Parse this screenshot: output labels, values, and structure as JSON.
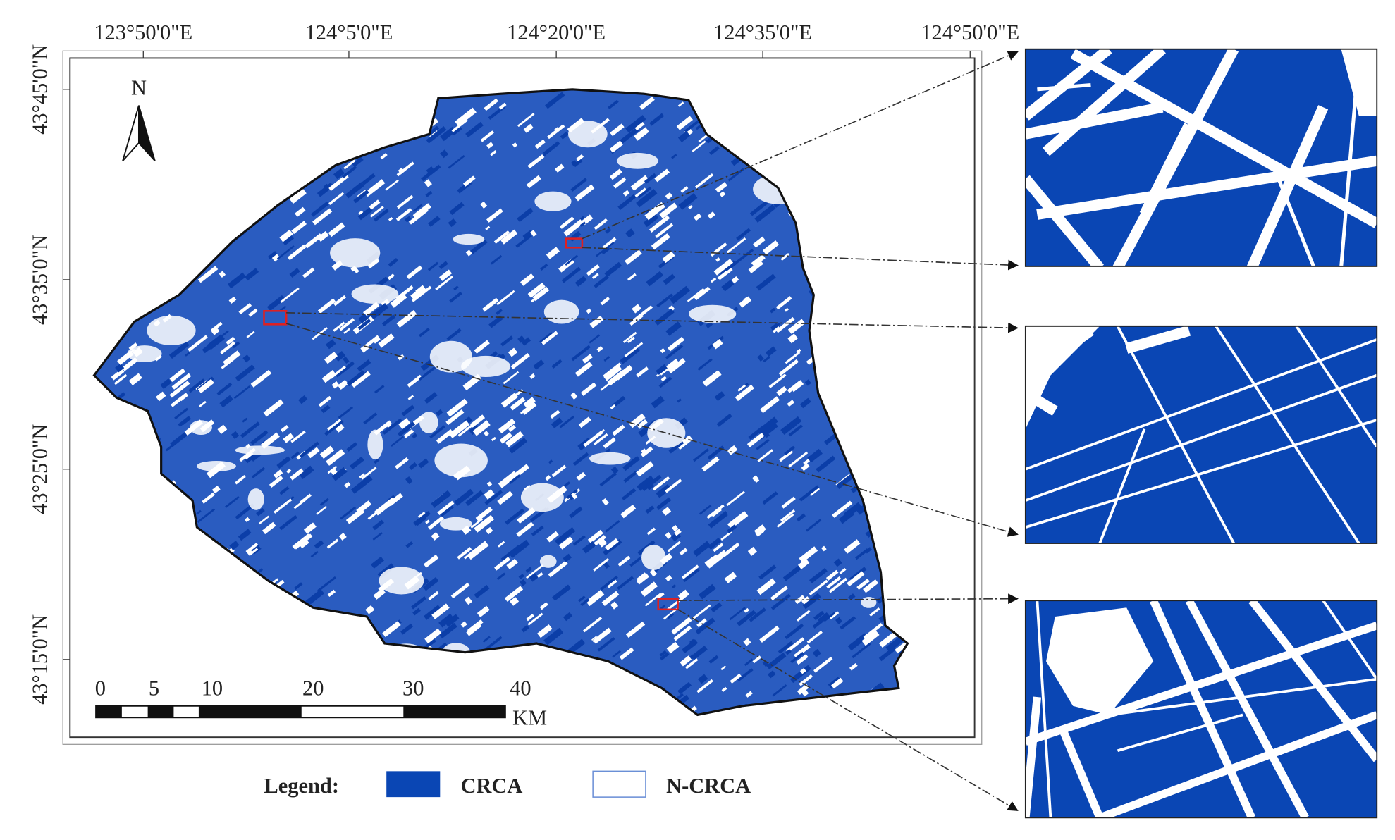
{
  "lon_labels": [
    "123°50'0\"E",
    "124°5'0\"E",
    "124°20'0\"E",
    "124°35'0\"E",
    "124°50'0\"E"
  ],
  "lat_labels": [
    "43°45'0\"N",
    "43°35'0\"N",
    "43°25'0\"N",
    "43°15'0\"N"
  ],
  "north": "N",
  "scale_bar": {
    "labels": [
      "0",
      "5",
      "10",
      "20",
      "30",
      "40"
    ],
    "unit": "KM"
  },
  "legend": {
    "title": "Legend:",
    "items": [
      "CRCA",
      "N-CRCA"
    ]
  }
}
